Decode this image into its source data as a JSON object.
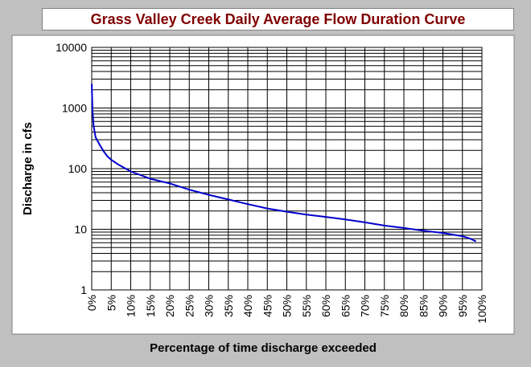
{
  "chart_data": {
    "type": "line",
    "title": "Grass Valley Creek Daily Average Flow Duration Curve",
    "xlabel": "Percentage of time discharge exceeded",
    "ylabel": "Discharge in cfs",
    "xlim": [
      0,
      100
    ],
    "ylim": [
      1,
      10000
    ],
    "y_scale": "log",
    "grid": true,
    "x_tick_labels": [
      "0%",
      "5%",
      "10%",
      "15%",
      "20%",
      "25%",
      "30%",
      "35%",
      "40%",
      "45%",
      "50%",
      "55%",
      "60%",
      "65%",
      "70%",
      "75%",
      "80%",
      "85%",
      "90%",
      "95%",
      "100%"
    ],
    "y_tick_labels": [
      "1",
      "10",
      "100",
      "1000",
      "10000"
    ],
    "series": [
      {
        "color": "#0000cc",
        "x": [
          0,
          0.2,
          0.5,
          1,
          2,
          3,
          4,
          5,
          7,
          10,
          15,
          20,
          25,
          30,
          35,
          40,
          45,
          50,
          55,
          60,
          65,
          70,
          75,
          80,
          85,
          90,
          95,
          97,
          98.5
        ],
        "y": [
          2500,
          900,
          500,
          330,
          250,
          195,
          160,
          140,
          115,
          90,
          68,
          57,
          45,
          37,
          31,
          26,
          22,
          19.5,
          17.5,
          16,
          14.5,
          13,
          11.5,
          10.5,
          9.5,
          8.7,
          7.7,
          7,
          6.3
        ]
      }
    ]
  }
}
